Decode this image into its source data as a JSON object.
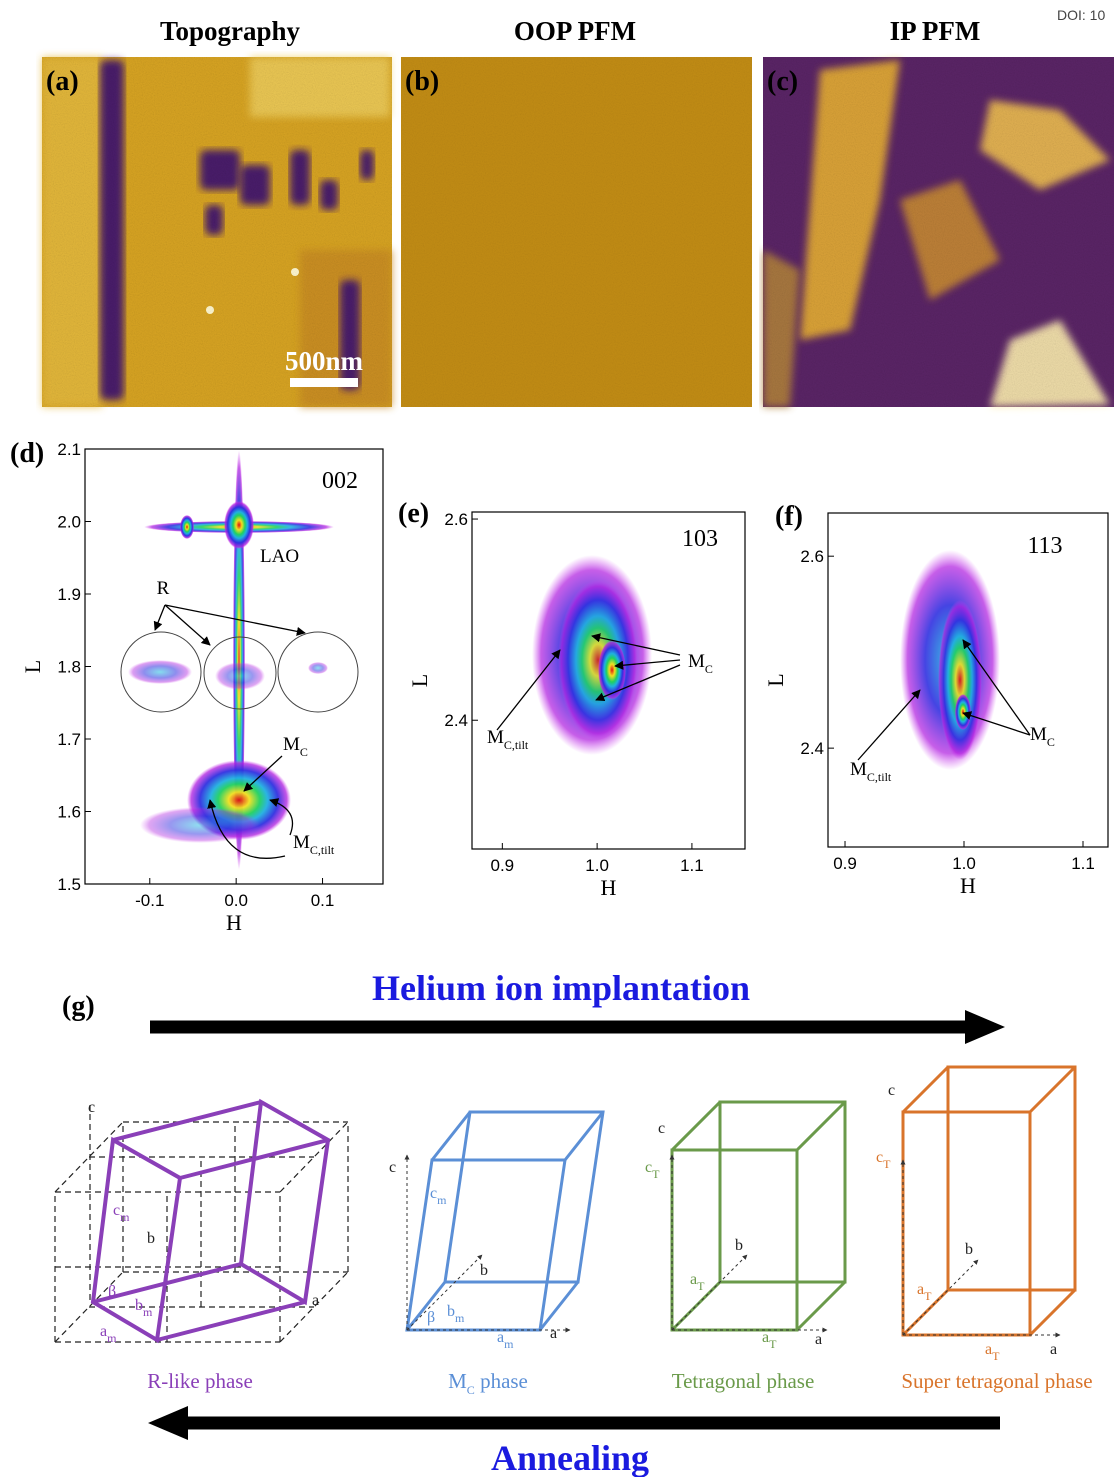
{
  "doi": "DOI: 10",
  "images": [
    {
      "heading": "Topography",
      "label": "(a)",
      "scale_bar": "500nm"
    },
    {
      "heading": "OOP PFM",
      "label": "(b)"
    },
    {
      "heading": "IP PFM",
      "label": "(c)"
    }
  ],
  "maps": [
    {
      "label": "(d)",
      "reflection": "002",
      "xlabel": "H",
      "ylabel": "L",
      "xlim": [
        -0.175,
        0.17
      ],
      "ylim": [
        1.5,
        2.1
      ],
      "xticks": [
        -0.1,
        {
          "value": 0,
          "label": "0.0"
        },
        0.1
      ],
      "yticks": [
        1.5,
        1.6,
        1.7,
        1.8,
        1.9,
        {
          "value": 2,
          "label": "2.0"
        },
        2.1
      ],
      "annotations": [
        {
          "text": "LAO"
        },
        {
          "text": "R"
        },
        {
          "text": "M",
          "sub": "C"
        },
        {
          "text": "M",
          "sub": "C,tilt"
        }
      ]
    },
    {
      "label": "(e)",
      "reflection": "103",
      "xlabel": "H",
      "ylabel": "L",
      "xlim": [
        0.868,
        1.156
      ],
      "ylim": [
        2.272,
        2.607
      ],
      "xticks": [
        0.9,
        {
          "value": 1,
          "label": "1.0"
        },
        1.1
      ],
      "yticks": [
        2.4,
        2.6
      ],
      "annotations": [
        {
          "text": "M",
          "sub": "C"
        },
        {
          "text": "M",
          "sub": "C,tilt"
        }
      ]
    },
    {
      "label": "(f)",
      "reflection": "113",
      "xlabel": "H",
      "ylabel": "L",
      "xlim": [
        0.8857,
        1.121
      ],
      "ylim": [
        2.297,
        2.645
      ],
      "xticks": [
        0.9,
        {
          "value": 1,
          "label": "1.0"
        },
        1.1
      ],
      "yticks": [
        2.4,
        2.6
      ],
      "annotations": [
        {
          "text": "M",
          "sub": "C"
        },
        {
          "text": "M",
          "sub": "C,tilt"
        }
      ]
    }
  ],
  "schematic": {
    "label": "(g)",
    "forward": "Helium ion implantation",
    "backward": "Annealing",
    "phases": [
      {
        "name": {
          "text": "R-like phase"
        },
        "color": "#8a3fb8",
        "axes": [
          {
            "text": "c"
          },
          {
            "text": "c",
            "sub": "m"
          },
          {
            "text": "b"
          },
          {
            "text": "β"
          },
          {
            "text": "b",
            "sub": "m"
          },
          {
            "text": "a"
          },
          {
            "text": "a",
            "sub": "m"
          }
        ]
      },
      {
        "name": {
          "text": "M",
          "sub": "C",
          "rest": " phase"
        },
        "color": "#5b8fd6",
        "axes": [
          {
            "text": "c"
          },
          {
            "text": "c",
            "sub": "m"
          },
          {
            "text": "b"
          },
          {
            "text": "β"
          },
          {
            "text": "b",
            "sub": "m"
          },
          {
            "text": "a"
          },
          {
            "text": "a",
            "sub": "m"
          }
        ]
      },
      {
        "name": {
          "text": "Tetragonal phase"
        },
        "color": "#6a9a4a",
        "axes": [
          {
            "text": "c"
          },
          {
            "text": "c",
            "sub": "T"
          },
          {
            "text": "b"
          },
          {
            "text": "a",
            "sub": "T"
          },
          {
            "text": "a",
            "sub": "T"
          },
          {
            "text": "a"
          }
        ]
      },
      {
        "name": {
          "text": "Super tetragonal phase"
        },
        "color": "#d9742b",
        "axes": [
          {
            "text": "c"
          },
          {
            "text": "c",
            "sub": "T"
          },
          {
            "text": "b"
          },
          {
            "text": "a",
            "sub": "T"
          },
          {
            "text": "a",
            "sub": "T"
          },
          {
            "text": "a"
          }
        ]
      }
    ]
  }
}
